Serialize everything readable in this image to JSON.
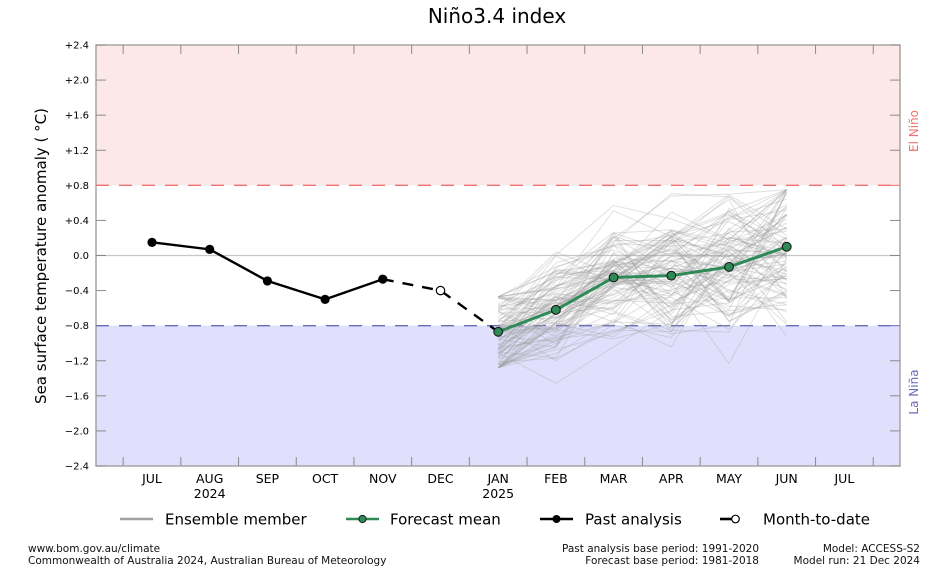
{
  "chart_data": {
    "type": "line",
    "title": "Niño3.4 index",
    "xlabel": "",
    "ylabel": "Sea surface temperature anomaly ( °C)",
    "ylim": [
      -2.4,
      2.4
    ],
    "yticks": [
      2.4,
      2.0,
      1.6,
      1.2,
      0.8,
      0.4,
      0.0,
      -0.4,
      -0.8,
      -1.2,
      -1.6,
      -2.0,
      -2.4
    ],
    "ytick_labels": [
      "+2.4",
      "+2.0",
      "+1.6",
      "+1.2",
      "+0.8",
      "+0.4",
      "0.0",
      "−0.4",
      "−0.8",
      "−1.2",
      "−1.6",
      "−2.0",
      "−2.4"
    ],
    "categories": [
      "JUL",
      "AUG",
      "SEP",
      "OCT",
      "NOV",
      "DEC",
      "JAN",
      "FEB",
      "MAR",
      "APR",
      "MAY",
      "JUN",
      "JUL"
    ],
    "category_sublabels": [
      "",
      "2024",
      "",
      "",
      "",
      "",
      "2025",
      "",
      "",
      "",
      "",
      "",
      ""
    ],
    "grid": false,
    "thresholds": {
      "el_nino": {
        "value": 0.8,
        "label": "El Niño",
        "color": "#f07070",
        "fill": "#fde8e8"
      },
      "la_nina": {
        "value": -0.8,
        "label": "La Niña",
        "color": "#6b6bb8",
        "fill": "#e0e0fc"
      }
    },
    "series": [
      {
        "name": "Past analysis",
        "color": "#000000",
        "marker": "filled-circle",
        "line": "solid",
        "x": [
          "JUL",
          "AUG",
          "SEP",
          "OCT",
          "NOV"
        ],
        "values": [
          0.15,
          0.07,
          -0.29,
          -0.5,
          -0.27
        ]
      },
      {
        "name": "Month-to-date",
        "color": "#000000",
        "marker": "open-circle",
        "line": "dashed",
        "x": [
          "NOV",
          "DEC",
          "JAN"
        ],
        "values": [
          -0.27,
          -0.4,
          -0.87
        ]
      },
      {
        "name": "Forecast mean",
        "color": "#2e8b57",
        "marker": "filled-circle",
        "line": "solid",
        "x": [
          "JAN",
          "FEB",
          "MAR",
          "APR",
          "MAY",
          "JUN"
        ],
        "values": [
          -0.87,
          -0.62,
          -0.25,
          -0.23,
          -0.13,
          0.1
        ]
      },
      {
        "name": "Ensemble member",
        "color": "#a0a0a0",
        "line": "solid",
        "x": [
          "JAN",
          "FEB",
          "MAR",
          "APR",
          "MAY",
          "JUN"
        ],
        "count_approx": 99,
        "spread_range": {
          "JAN": [
            -1.28,
            -0.47
          ],
          "FEB": [
            -1.6,
            0.25
          ],
          "MAR": [
            -1.3,
            0.8
          ],
          "APR": [
            -1.7,
            0.8
          ],
          "MAY": [
            -1.42,
            0.7
          ],
          "JUN": [
            -0.95,
            0.75
          ]
        }
      }
    ],
    "legend": {
      "placement": "bottom",
      "entries": [
        "Ensemble member",
        "Forecast mean",
        "Past analysis",
        "Month-to-date"
      ]
    }
  },
  "footer": {
    "left_line1": "www.bom.gov.au/climate",
    "left_line2": "Commonwealth of Australia 2024, Australian Bureau of Meteorology",
    "mid_line1": "Past analysis base period: 1991-2020",
    "mid_line2": "Forecast base period: 1981-2018",
    "right_line1": "Model: ACCESS-S2",
    "right_line2": "Model run: 21 Dec 2024"
  }
}
